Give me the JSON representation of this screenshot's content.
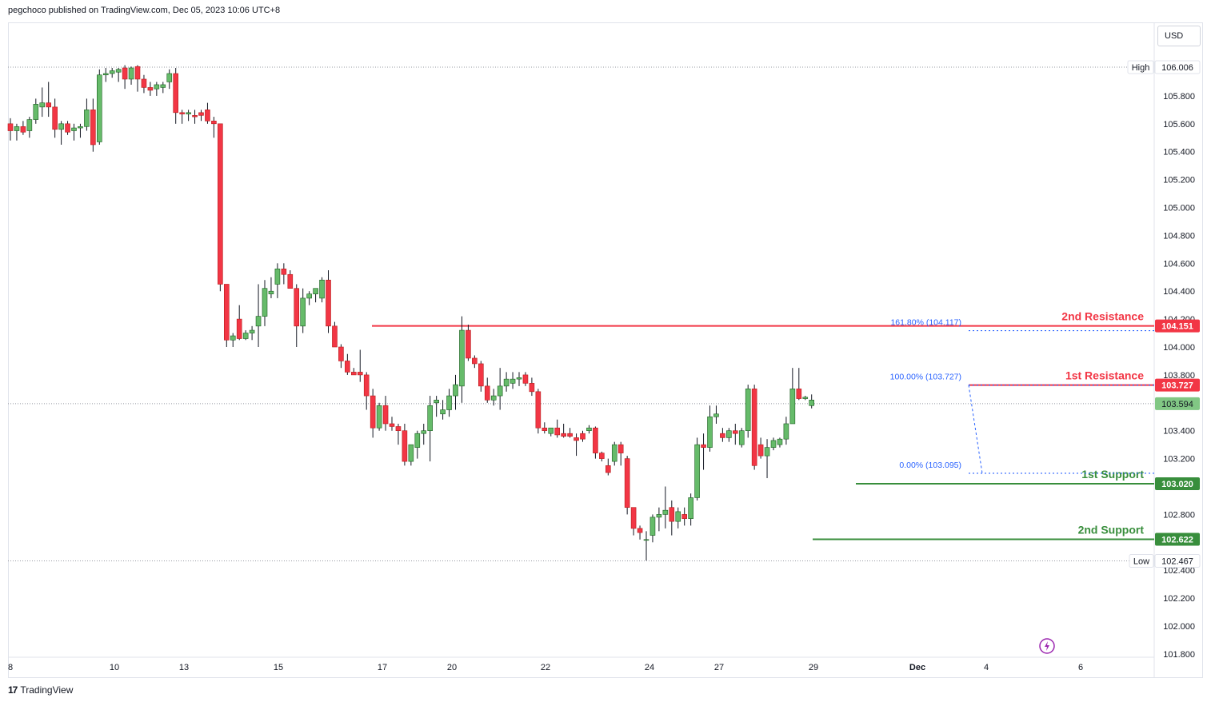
{
  "header": {
    "publisher": "pegchoco published on TradingView.com, Dec 05, 2023 10:06 UTC+8"
  },
  "currency_label": "USD",
  "footer": {
    "brand": "TradingView"
  },
  "colors": {
    "up": "#26a69a",
    "up_fill": "#66bb6a",
    "down": "#f23645",
    "resistance": "#f23645",
    "support": "#388e3c",
    "fib": "#2962ff"
  },
  "chart_data": {
    "type": "candlestick",
    "ylim": [
      101.8,
      106.1
    ],
    "x_tick_labels": [
      "8",
      "10",
      "13",
      "15",
      "17",
      "20",
      "22",
      "24",
      "27",
      "29",
      "Dec",
      "4",
      "6"
    ],
    "y_tick_labels": [
      "106.000",
      "105.800",
      "105.600",
      "105.400",
      "105.200",
      "105.000",
      "104.800",
      "104.600",
      "104.400",
      "104.200",
      "104.000",
      "103.800",
      "103.600",
      "103.400",
      "103.200",
      "103.000",
      "102.800",
      "102.600",
      "102.400",
      "102.200",
      "102.000",
      "101.800"
    ],
    "high": {
      "label": "High",
      "value": "106.006"
    },
    "low": {
      "label": "Low",
      "value": "102.467"
    },
    "last_price": "103.594",
    "levels": [
      {
        "name": "2nd Resistance",
        "value": 104.151,
        "tag": "104.151",
        "kind": "resistance"
      },
      {
        "name": "1st Resistance",
        "value": 103.727,
        "tag": "103.727",
        "kind": "resistance"
      },
      {
        "name": "1st Support",
        "value": 103.02,
        "tag": "103.020",
        "kind": "support"
      },
      {
        "name": "2nd Support",
        "value": 102.622,
        "tag": "102.622",
        "kind": "support"
      }
    ],
    "fib": [
      {
        "label": "161.80% (104.117)",
        "value": 104.117
      },
      {
        "label": "100.00% (103.727)",
        "value": 103.727
      },
      {
        "label": "0.00% (103.095)",
        "value": 103.095
      }
    ],
    "candles": [
      [
        105.6,
        105.64,
        105.48,
        105.55
      ],
      [
        105.55,
        105.6,
        105.48,
        105.58
      ],
      [
        105.58,
        105.62,
        105.52,
        105.54
      ],
      [
        105.55,
        105.65,
        105.5,
        105.63
      ],
      [
        105.63,
        105.78,
        105.6,
        105.74
      ],
      [
        105.72,
        105.86,
        105.65,
        105.75
      ],
      [
        105.75,
        105.9,
        105.65,
        105.72
      ],
      [
        105.72,
        105.78,
        105.5,
        105.56
      ],
      [
        105.56,
        105.62,
        105.45,
        105.6
      ],
      [
        105.6,
        105.62,
        105.52,
        105.54
      ],
      [
        105.55,
        105.6,
        105.48,
        105.57
      ],
      [
        105.57,
        105.6,
        105.5,
        105.58
      ],
      [
        105.58,
        105.78,
        105.55,
        105.7
      ],
      [
        105.7,
        105.78,
        105.4,
        105.45
      ],
      [
        105.47,
        105.99,
        105.45,
        105.95
      ],
      [
        105.95,
        106.0,
        105.9,
        105.96
      ],
      [
        105.96,
        106.0,
        105.93,
        105.98
      ],
      [
        105.97,
        106.0,
        105.9,
        105.99
      ],
      [
        106.0,
        106.02,
        105.85,
        105.92
      ],
      [
        105.92,
        106.01,
        105.88,
        106.0
      ],
      [
        106.01,
        106.02,
        105.83,
        105.92
      ],
      [
        105.92,
        105.95,
        105.82,
        105.86
      ],
      [
        105.86,
        105.9,
        105.8,
        105.84
      ],
      [
        105.85,
        105.9,
        105.8,
        105.88
      ],
      [
        105.86,
        105.9,
        105.82,
        105.88
      ],
      [
        105.9,
        105.99,
        105.85,
        105.96
      ],
      [
        105.96,
        106.0,
        105.6,
        105.68
      ],
      [
        105.68,
        105.7,
        105.6,
        105.67
      ],
      [
        105.67,
        105.7,
        105.62,
        105.68
      ],
      [
        105.66,
        105.7,
        105.6,
        105.65
      ],
      [
        105.68,
        105.7,
        105.62,
        105.66
      ],
      [
        105.7,
        105.75,
        105.6,
        105.62
      ],
      [
        105.62,
        105.65,
        105.5,
        105.6
      ],
      [
        105.6,
        105.6,
        104.4,
        104.45
      ],
      [
        104.45,
        104.45,
        104.0,
        104.05
      ],
      [
        104.05,
        104.1,
        104.0,
        104.08
      ],
      [
        104.2,
        104.3,
        104.05,
        104.06
      ],
      [
        104.06,
        104.12,
        104.05,
        104.1
      ],
      [
        104.1,
        104.15,
        104.05,
        104.12
      ],
      [
        104.15,
        104.45,
        104.0,
        104.22
      ],
      [
        104.22,
        104.48,
        104.15,
        104.42
      ],
      [
        104.38,
        104.5,
        104.35,
        104.4
      ],
      [
        104.45,
        104.6,
        104.35,
        104.56
      ],
      [
        104.56,
        104.6,
        104.45,
        104.52
      ],
      [
        104.52,
        104.55,
        104.42,
        104.42
      ],
      [
        104.42,
        104.45,
        104.0,
        104.15
      ],
      [
        104.15,
        104.42,
        104.1,
        104.35
      ],
      [
        104.35,
        104.4,
        104.3,
        104.38
      ],
      [
        104.38,
        104.42,
        104.32,
        104.42
      ],
      [
        104.35,
        104.5,
        104.32,
        104.48
      ],
      [
        104.48,
        104.55,
        104.1,
        104.15
      ],
      [
        104.15,
        104.18,
        104.0,
        104.0
      ],
      [
        104.0,
        104.02,
        103.85,
        103.9
      ],
      [
        103.9,
        103.95,
        103.8,
        103.82
      ],
      [
        103.82,
        103.85,
        103.8,
        103.8
      ],
      [
        103.82,
        103.98,
        103.75,
        103.8
      ],
      [
        103.8,
        103.82,
        103.55,
        103.65
      ],
      [
        103.65,
        103.7,
        103.35,
        103.42
      ],
      [
        103.42,
        103.6,
        103.4,
        103.58
      ],
      [
        103.58,
        103.65,
        103.4,
        103.45
      ],
      [
        103.45,
        103.5,
        103.4,
        103.43
      ],
      [
        103.43,
        103.45,
        103.3,
        103.4
      ],
      [
        103.4,
        103.45,
        103.15,
        103.18
      ],
      [
        103.18,
        103.3,
        103.15,
        103.3
      ],
      [
        103.28,
        103.4,
        103.2,
        103.38
      ],
      [
        103.38,
        103.45,
        103.3,
        103.4
      ],
      [
        103.4,
        103.65,
        103.18,
        103.58
      ],
      [
        103.6,
        103.65,
        103.5,
        103.62
      ],
      [
        103.52,
        103.62,
        103.48,
        103.55
      ],
      [
        103.55,
        103.7,
        103.5,
        103.65
      ],
      [
        103.65,
        103.8,
        103.55,
        103.73
      ],
      [
        103.72,
        104.22,
        103.6,
        104.12
      ],
      [
        104.12,
        104.16,
        103.9,
        103.92
      ],
      [
        103.92,
        103.94,
        103.85,
        103.88
      ],
      [
        103.88,
        103.9,
        103.68,
        103.72
      ],
      [
        103.72,
        103.78,
        103.6,
        103.62
      ],
      [
        103.62,
        103.7,
        103.58,
        103.65
      ],
      [
        103.65,
        103.85,
        103.55,
        103.72
      ],
      [
        103.72,
        103.82,
        103.68,
        103.77
      ],
      [
        103.74,
        103.82,
        103.7,
        103.77
      ],
      [
        103.77,
        103.82,
        103.72,
        103.78
      ],
      [
        103.8,
        103.82,
        103.72,
        103.74
      ],
      [
        103.74,
        103.78,
        103.65,
        103.68
      ],
      [
        103.68,
        103.7,
        103.38,
        103.42
      ],
      [
        103.42,
        103.46,
        103.38,
        103.4
      ],
      [
        103.38,
        103.42,
        103.36,
        103.42
      ],
      [
        103.42,
        103.48,
        103.35,
        103.37
      ],
      [
        103.38,
        103.45,
        103.35,
        103.36
      ],
      [
        103.38,
        103.42,
        103.35,
        103.36
      ],
      [
        103.35,
        103.38,
        103.22,
        103.33
      ],
      [
        103.38,
        103.4,
        103.32,
        103.34
      ],
      [
        103.4,
        103.44,
        103.38,
        103.42
      ],
      [
        103.42,
        103.43,
        103.2,
        103.24
      ],
      [
        103.24,
        103.25,
        103.18,
        103.2
      ],
      [
        103.15,
        103.2,
        103.08,
        103.1
      ],
      [
        103.18,
        103.32,
        103.15,
        103.3
      ],
      [
        103.3,
        103.32,
        103.15,
        103.24
      ],
      [
        103.2,
        103.22,
        102.8,
        102.85
      ],
      [
        102.85,
        102.85,
        102.65,
        102.7
      ],
      [
        102.7,
        102.72,
        102.62,
        102.67
      ],
      [
        102.62,
        102.68,
        102.47,
        102.62
      ],
      [
        102.65,
        102.8,
        102.6,
        102.78
      ],
      [
        102.78,
        102.85,
        102.68,
        102.8
      ],
      [
        102.8,
        103.0,
        102.7,
        102.83
      ],
      [
        102.85,
        102.9,
        102.65,
        102.75
      ],
      [
        102.75,
        102.85,
        102.7,
        102.82
      ],
      [
        102.8,
        102.85,
        102.72,
        102.77
      ],
      [
        102.77,
        102.95,
        102.72,
        102.92
      ],
      [
        102.92,
        103.35,
        102.9,
        103.3
      ],
      [
        103.3,
        103.38,
        103.12,
        103.28
      ],
      [
        103.28,
        103.58,
        103.25,
        103.5
      ],
      [
        103.5,
        103.58,
        103.45,
        103.52
      ],
      [
        103.38,
        103.42,
        103.32,
        103.35
      ],
      [
        103.35,
        103.42,
        103.32,
        103.4
      ],
      [
        103.4,
        103.45,
        103.3,
        103.38
      ],
      [
        103.3,
        103.42,
        103.28,
        103.4
      ],
      [
        103.4,
        103.73,
        103.35,
        103.7
      ],
      [
        103.7,
        103.73,
        103.12,
        103.15
      ],
      [
        103.3,
        103.35,
        103.2,
        103.22
      ],
      [
        103.22,
        103.34,
        103.06,
        103.28
      ],
      [
        103.28,
        103.35,
        103.26,
        103.33
      ],
      [
        103.3,
        103.35,
        103.28,
        103.34
      ],
      [
        103.34,
        103.5,
        103.3,
        103.45
      ],
      [
        103.45,
        103.85,
        103.45,
        103.7
      ],
      [
        103.7,
        103.85,
        103.62,
        103.63
      ],
      [
        103.63,
        103.65,
        103.62,
        103.64
      ],
      [
        103.58,
        103.66,
        103.56,
        103.62
      ]
    ]
  }
}
